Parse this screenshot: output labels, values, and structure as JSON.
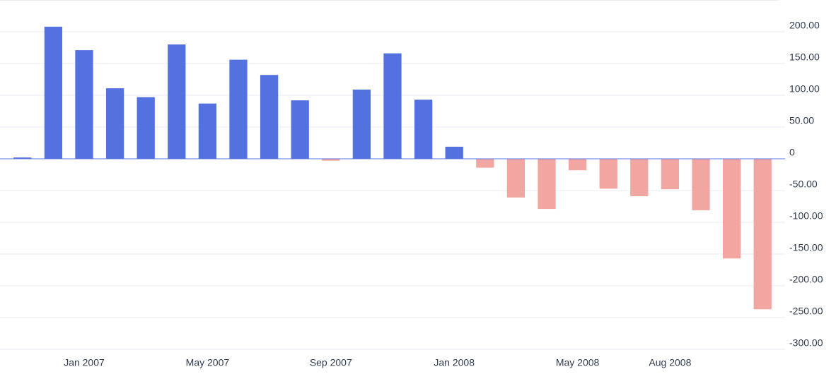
{
  "chart_data": {
    "type": "bar",
    "categories": [
      null,
      null,
      "Jan 2007",
      null,
      null,
      null,
      "May 2007",
      null,
      null,
      null,
      "Sep 2007",
      null,
      null,
      null,
      "Jan 2008",
      null,
      null,
      null,
      "May 2008",
      null,
      null,
      "Aug 2008",
      null,
      null,
      null
    ],
    "values": [
      2,
      208,
      171,
      111,
      97,
      180,
      87,
      156,
      132,
      92,
      -3,
      109,
      166,
      93,
      19,
      -14,
      -61,
      -79,
      -18,
      -47,
      -59,
      -48,
      -81,
      -157,
      -237
    ],
    "color": "#5371df",
    "negative_color": "#f1a6a1",
    "zero_line_color": "#5371df",
    "ylim": [
      -300,
      250
    ],
    "yticks": [
      {
        "value": -300,
        "label": "-300.00"
      },
      {
        "value": -250,
        "label": "-250.00"
      },
      {
        "value": -200,
        "label": "-200.00"
      },
      {
        "value": -150,
        "label": "-150.00"
      },
      {
        "value": -100,
        "label": "-100.00"
      },
      {
        "value": -50,
        "label": "-50.00"
      },
      0,
      {
        "value": 50,
        "label": "50.00"
      },
      {
        "value": 100,
        "label": "100.00"
      },
      {
        "value": 150,
        "label": "150.00"
      },
      {
        "value": 200,
        "label": "200.00"
      }
    ],
    "grid": true,
    "y_axis_side": "right"
  }
}
